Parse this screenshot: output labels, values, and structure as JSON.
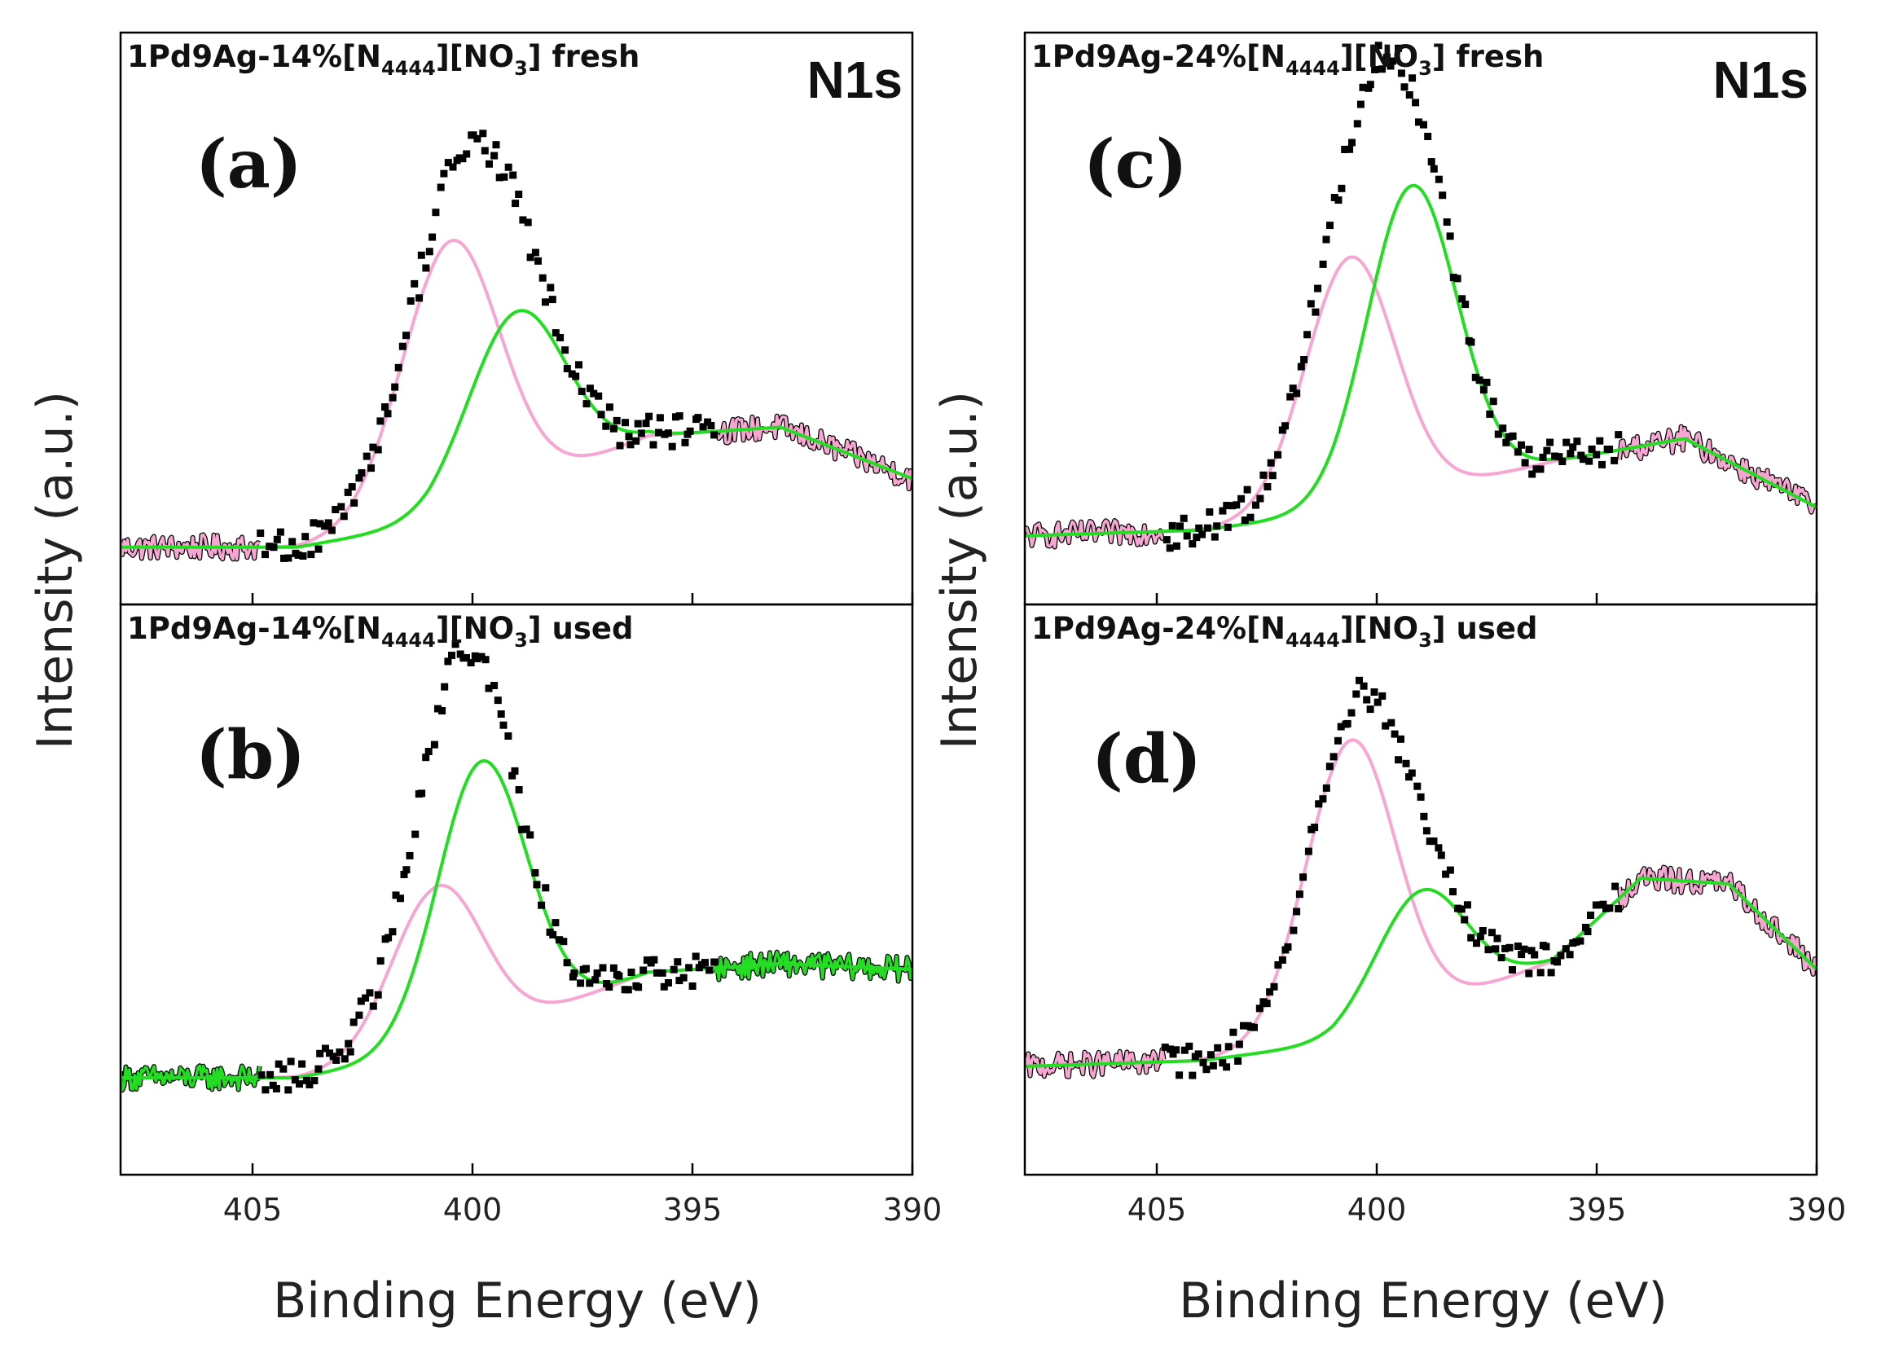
{
  "figure": {
    "region_label": "N1s",
    "y_axis_title": "Intensity (a.u.)",
    "x_axis_title": "Binding Energy (eV)",
    "colors": {
      "data": "#000000",
      "component_1": "#f6a6d0",
      "component_2": "#22dd22",
      "envelope": "#000000"
    }
  },
  "chart_data": [
    {
      "type": "line",
      "id": "a",
      "panel_label": "(a)",
      "sample": {
        "prefix": "1Pd9Ag-14%[N",
        "sub1": "4444",
        "mid": "][NO",
        "sub2": "3",
        "suffix": "]  fresh"
      },
      "xlabel": "Binding Energy (eV)",
      "ylabel": "Intensity (a.u.)",
      "xlim": [
        408,
        390
      ],
      "xticks": [
        405,
        400,
        395,
        390
      ],
      "ylim": [
        0,
        1
      ],
      "baseline": {
        "pts": [
          [
            408,
            0.1
          ],
          [
            404,
            0.1
          ],
          [
            401,
            0.14
          ],
          [
            396,
            0.295
          ],
          [
            393,
            0.31
          ],
          [
            390,
            0.22
          ]
        ],
        "noise": 0.022
      },
      "series": [
        {
          "name": "pink component",
          "color": "#f6a6d0",
          "peak": {
            "center": 400.5,
            "height": 0.48,
            "fwhm": 2.6
          }
        },
        {
          "name": "green component",
          "color": "#22dd22",
          "peak": {
            "center": 399.0,
            "height": 0.31,
            "fwhm": 2.6
          }
        },
        {
          "name": "experimental",
          "color": "#000000",
          "x_range": [
            404.8,
            394.5
          ],
          "scatter": 0.03
        }
      ]
    },
    {
      "type": "line",
      "id": "b",
      "panel_label": "(b)",
      "sample": {
        "prefix": "1Pd9Ag-14%[N",
        "sub1": "4444",
        "mid": "][NO",
        "sub2": "3",
        "suffix": "]  used"
      },
      "xlabel": "Binding Energy (eV)",
      "ylabel": "Intensity (a.u.)",
      "xlim": [
        408,
        390
      ],
      "xticks": [
        405,
        400,
        395,
        390
      ],
      "ylim": [
        0,
        1
      ],
      "baseline": {
        "pts": [
          [
            408,
            0.17
          ],
          [
            404,
            0.17
          ],
          [
            401,
            0.21
          ],
          [
            396,
            0.355
          ],
          [
            393,
            0.37
          ],
          [
            390,
            0.36
          ]
        ],
        "noise": 0.022
      },
      "series": [
        {
          "name": "pink component",
          "color": "#f6a6d0",
          "peak": {
            "center": 400.8,
            "height": 0.29,
            "fwhm": 2.4
          }
        },
        {
          "name": "green component",
          "color": "#22dd22",
          "peak": {
            "center": 399.8,
            "height": 0.48,
            "fwhm": 2.4
          }
        },
        {
          "name": "experimental",
          "color": "#000000",
          "x_range": [
            404.8,
            394.5
          ],
          "scatter": 0.03
        }
      ]
    },
    {
      "type": "line",
      "id": "c",
      "panel_label": "(c)",
      "sample": {
        "prefix": "1Pd9Ag-24%[N",
        "sub1": "4444",
        "mid": "][NO",
        "sub2": "3",
        "suffix": "]  fresh"
      },
      "xlabel": "Binding Energy (eV)",
      "ylabel": "Intensity (a.u.)",
      "xlim": [
        408,
        390
      ],
      "xticks": [
        405,
        400,
        395,
        390
      ],
      "ylim": [
        0,
        1
      ],
      "baseline": {
        "pts": [
          [
            408,
            0.12
          ],
          [
            404,
            0.13
          ],
          [
            401,
            0.16
          ],
          [
            396,
            0.25
          ],
          [
            393,
            0.29
          ],
          [
            390,
            0.17
          ]
        ],
        "noise": 0.022
      },
      "series": [
        {
          "name": "pink component",
          "color": "#f6a6d0",
          "peak": {
            "center": 400.6,
            "height": 0.44,
            "fwhm": 2.4
          }
        },
        {
          "name": "green component",
          "color": "#22dd22",
          "peak": {
            "center": 399.2,
            "height": 0.54,
            "fwhm": 2.4
          }
        },
        {
          "name": "experimental",
          "color": "#000000",
          "x_range": [
            404.8,
            394.5
          ],
          "scatter": 0.03
        }
      ]
    },
    {
      "type": "line",
      "id": "d",
      "panel_label": "(d)",
      "sample": {
        "prefix": "1Pd9Ag-24%[N",
        "sub1": "4444",
        "mid": "][NO",
        "sub2": "3",
        "suffix": "]  used"
      },
      "xlabel": "Binding Energy (eV)",
      "ylabel": "Intensity (a.u.)",
      "xlim": [
        408,
        390
      ],
      "xticks": [
        405,
        400,
        395,
        390
      ],
      "ylim": [
        0,
        1
      ],
      "baseline": {
        "pts": [
          [
            408,
            0.19
          ],
          [
            404,
            0.2
          ],
          [
            401,
            0.23
          ],
          [
            396,
            0.375
          ],
          [
            394,
            0.52
          ],
          [
            392,
            0.51
          ],
          [
            390,
            0.36
          ]
        ],
        "noise": 0.022
      },
      "series": [
        {
          "name": "pink component",
          "color": "#f6a6d0",
          "peak": {
            "center": 400.6,
            "height": 0.52,
            "fwhm": 2.4
          }
        },
        {
          "name": "green component",
          "color": "#22dd22",
          "peak": {
            "center": 399.0,
            "height": 0.21,
            "fwhm": 2.4
          }
        },
        {
          "name": "experimental",
          "color": "#000000",
          "x_range": [
            404.8,
            394.5
          ],
          "scatter": 0.03
        }
      ]
    }
  ]
}
